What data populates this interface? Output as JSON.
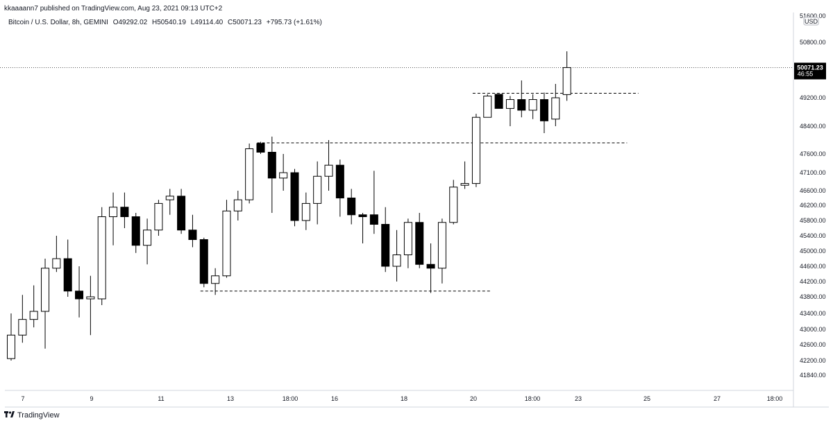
{
  "header": {
    "published_line": "kkaaaann7 published on TradingView.com, Aug 23, 2021 09:13 UTC+2",
    "symbol_line": "Bitcoin / U.S. Dollar, 8h, GEMINI",
    "ohlc": {
      "open": "O49292.02",
      "high": "H50540.19",
      "low": "L49114.40",
      "close": "C50071.23",
      "change": "+795.73 (+1.61%)"
    }
  },
  "price_scale": {
    "currency": "USD",
    "labels": [
      "51600.00",
      "50800.00",
      "50000.00",
      "49200.00",
      "48400.00",
      "47600.00",
      "47100.00",
      "46600.00",
      "46200.00",
      "45800.00",
      "45400.00",
      "45000.00",
      "44600.00",
      "44200.00",
      "43800.00",
      "43400.00",
      "43000.00",
      "42600.00",
      "42200.00",
      "41840.00"
    ]
  },
  "last_price": {
    "value": "50071.23",
    "countdown": "46:55"
  },
  "time_axis": {
    "labels": [
      "7",
      "9",
      "11",
      "13",
      "18:00",
      "16",
      "18",
      "20",
      "18:00",
      "23",
      "25",
      "27",
      "18:00"
    ]
  },
  "footer": {
    "brand": "TradingView",
    "logo_icon": "tradingview-logo-icon"
  },
  "colors": {
    "up_body": "#ffffff",
    "down_body": "#000000",
    "wick": "#000000",
    "text": "#131722"
  },
  "chart_data": {
    "type": "candlestick",
    "title": "Bitcoin / U.S. Dollar, 8h, GEMINI",
    "ylabel": "USD",
    "ylim": [
      41640,
      51700
    ],
    "candles": [
      {
        "o": 42250,
        "h": 43400,
        "l": 42200,
        "c": 42850
      },
      {
        "o": 42850,
        "h": 43850,
        "l": 42650,
        "c": 43250
      },
      {
        "o": 43250,
        "h": 44100,
        "l": 43050,
        "c": 43450
      },
      {
        "o": 43450,
        "h": 44800,
        "l": 42500,
        "c": 44550
      },
      {
        "o": 44550,
        "h": 45400,
        "l": 44450,
        "c": 44800
      },
      {
        "o": 44800,
        "h": 45300,
        "l": 43800,
        "c": 43950
      },
      {
        "o": 43950,
        "h": 44600,
        "l": 43300,
        "c": 43750
      },
      {
        "o": 43750,
        "h": 44350,
        "l": 42850,
        "c": 43800
      },
      {
        "o": 43750,
        "h": 46150,
        "l": 43600,
        "c": 45900
      },
      {
        "o": 45900,
        "h": 46550,
        "l": 45150,
        "c": 46150
      },
      {
        "o": 46150,
        "h": 46550,
        "l": 45600,
        "c": 45900
      },
      {
        "o": 45900,
        "h": 46000,
        "l": 44950,
        "c": 45150
      },
      {
        "o": 45150,
        "h": 45850,
        "l": 44650,
        "c": 45550
      },
      {
        "o": 45550,
        "h": 46350,
        "l": 45400,
        "c": 46250
      },
      {
        "o": 46350,
        "h": 46650,
        "l": 45950,
        "c": 46450
      },
      {
        "o": 46450,
        "h": 46650,
        "l": 45450,
        "c": 45550
      },
      {
        "o": 45550,
        "h": 45950,
        "l": 45100,
        "c": 45300
      },
      {
        "o": 45300,
        "h": 45350,
        "l": 44050,
        "c": 44150
      },
      {
        "o": 44150,
        "h": 44550,
        "l": 43850,
        "c": 44350
      },
      {
        "o": 44350,
        "h": 46350,
        "l": 44300,
        "c": 46050
      },
      {
        "o": 46050,
        "h": 46600,
        "l": 45800,
        "c": 46350
      },
      {
        "o": 46350,
        "h": 47900,
        "l": 46250,
        "c": 47750
      },
      {
        "o": 47900,
        "h": 47950,
        "l": 47600,
        "c": 47650
      },
      {
        "o": 47650,
        "h": 48100,
        "l": 46000,
        "c": 46950
      },
      {
        "o": 46950,
        "h": 47600,
        "l": 46600,
        "c": 47100
      },
      {
        "o": 47100,
        "h": 47200,
        "l": 45650,
        "c": 45800
      },
      {
        "o": 45800,
        "h": 46550,
        "l": 45550,
        "c": 46250
      },
      {
        "o": 46250,
        "h": 47400,
        "l": 45700,
        "c": 47000
      },
      {
        "o": 47000,
        "h": 48000,
        "l": 46600,
        "c": 47300
      },
      {
        "o": 47300,
        "h": 47450,
        "l": 45900,
        "c": 46400
      },
      {
        "o": 46400,
        "h": 46650,
        "l": 45700,
        "c": 45950
      },
      {
        "o": 45950,
        "h": 46000,
        "l": 45200,
        "c": 45900
      },
      {
        "o": 45950,
        "h": 47150,
        "l": 45450,
        "c": 45700
      },
      {
        "o": 45700,
        "h": 46150,
        "l": 44450,
        "c": 44600
      },
      {
        "o": 44600,
        "h": 45550,
        "l": 44200,
        "c": 44900
      },
      {
        "o": 44900,
        "h": 45850,
        "l": 44550,
        "c": 45750
      },
      {
        "o": 45750,
        "h": 46000,
        "l": 44550,
        "c": 44650
      },
      {
        "o": 44650,
        "h": 45200,
        "l": 43900,
        "c": 44550
      },
      {
        "o": 44550,
        "h": 45850,
        "l": 44150,
        "c": 45750
      },
      {
        "o": 45750,
        "h": 46900,
        "l": 45700,
        "c": 46700
      },
      {
        "o": 46750,
        "h": 47400,
        "l": 46650,
        "c": 46800
      },
      {
        "o": 46800,
        "h": 48750,
        "l": 46700,
        "c": 48650
      },
      {
        "o": 48650,
        "h": 49300,
        "l": 48650,
        "c": 49250
      },
      {
        "o": 49300,
        "h": 49300,
        "l": 48900,
        "c": 48900
      },
      {
        "o": 48900,
        "h": 49250,
        "l": 48400,
        "c": 49150
      },
      {
        "o": 49150,
        "h": 49700,
        "l": 48650,
        "c": 48850
      },
      {
        "o": 48850,
        "h": 49300,
        "l": 48600,
        "c": 49150
      },
      {
        "o": 49150,
        "h": 49350,
        "l": 48200,
        "c": 48550
      },
      {
        "o": 48600,
        "h": 49600,
        "l": 48400,
        "c": 49200
      },
      {
        "o": 49292.02,
        "h": 50540.19,
        "l": 49114.4,
        "c": 50071.23
      }
    ],
    "horizontal_lines": [
      {
        "price": 49330,
        "from_index": 41,
        "to_index": 55
      },
      {
        "price": 47920,
        "from_index": 22,
        "to_index": 54
      },
      {
        "price": 43950,
        "from_index": 17,
        "to_index": 42
      }
    ]
  }
}
